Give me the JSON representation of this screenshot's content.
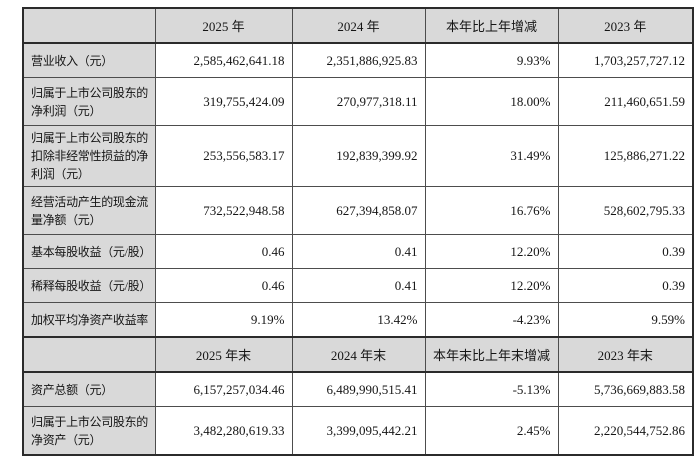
{
  "colors": {
    "header_bg": "#d9d9d9",
    "label_bg": "#d9d9d9",
    "border_thin": "#4d4d4d",
    "border_thick": "#2b2b2b",
    "text": "#151515",
    "page_bg": "#ffffff"
  },
  "table": {
    "period_section": {
      "corner": "",
      "headers": [
        "2025 年",
        "2024 年",
        "本年比上年增减",
        "2023 年"
      ],
      "rows": [
        {
          "label": "营业收入（元）",
          "v": [
            "2,585,462,641.18",
            "2,351,886,925.83",
            "9.93%",
            "1,703,257,727.12"
          ]
        },
        {
          "label": "归属于上市公司股东的净利润（元）",
          "v": [
            "319,755,424.09",
            "270,977,318.11",
            "18.00%",
            "211,460,651.59"
          ]
        },
        {
          "label": "归属于上市公司股东的扣除非经常性损益的净利润（元）",
          "v": [
            "253,556,583.17",
            "192,839,399.92",
            "31.49%",
            "125,886,271.22"
          ]
        },
        {
          "label": "经营活动产生的现金流量净额（元）",
          "v": [
            "732,522,948.58",
            "627,394,858.07",
            "16.76%",
            "528,602,795.33"
          ]
        },
        {
          "label": "基本每股收益（元/股）",
          "v": [
            "0.46",
            "0.41",
            "12.20%",
            "0.39"
          ]
        },
        {
          "label": "稀释每股收益（元/股）",
          "v": [
            "0.46",
            "0.41",
            "12.20%",
            "0.39"
          ]
        },
        {
          "label": "加权平均净资产收益率",
          "v": [
            "9.19%",
            "13.42%",
            "-4.23%",
            "9.59%"
          ]
        }
      ]
    },
    "yearend_section": {
      "corner": "",
      "headers": [
        "2025 年末",
        "2024 年末",
        "本年末比上年末增减",
        "2023 年末"
      ],
      "rows": [
        {
          "label": "资产总额（元）",
          "v": [
            "6,157,257,034.46",
            "6,489,990,515.41",
            "-5.13%",
            "5,736,669,883.58"
          ]
        },
        {
          "label": "归属于上市公司股东的净资产（元）",
          "v": [
            "3,482,280,619.33",
            "3,399,095,442.21",
            "2.45%",
            "2,220,544,752.86"
          ]
        }
      ]
    }
  }
}
